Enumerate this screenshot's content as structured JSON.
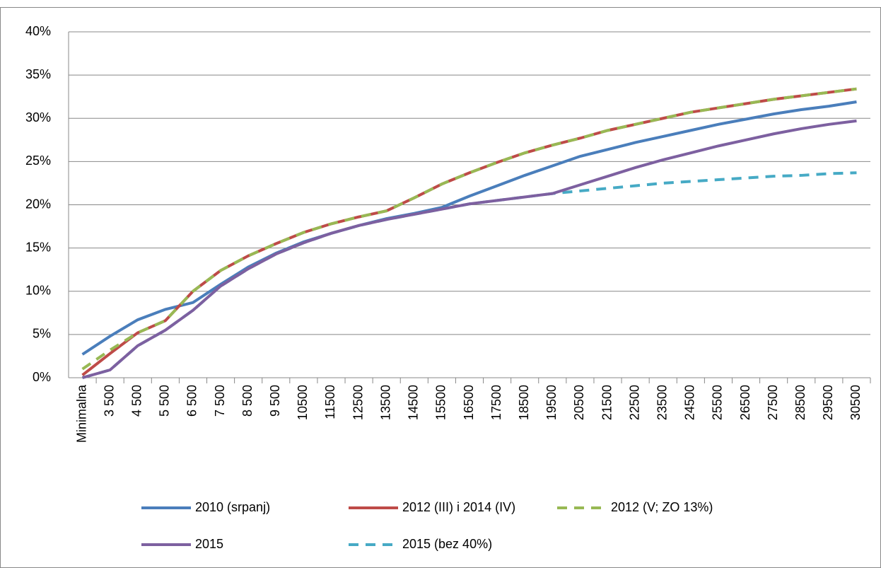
{
  "chart_data": {
    "type": "line",
    "categories": [
      "Minimalna",
      "3 500",
      "4 500",
      "5 500",
      "6 500",
      "7 500",
      "8 500",
      "9 500",
      "10500",
      "11500",
      "12500",
      "13500",
      "14500",
      "15500",
      "16500",
      "17500",
      "18500",
      "19500",
      "20500",
      "21500",
      "22500",
      "23500",
      "24500",
      "25500",
      "26500",
      "27500",
      "28500",
      "29500",
      "30500"
    ],
    "series": [
      {
        "name": "2010 (srpanj)",
        "color": "#4a7ebb",
        "dashed": false,
        "values": [
          2.7,
          4.8,
          6.7,
          7.9,
          8.7,
          10.8,
          12.8,
          14.4,
          15.7,
          16.7,
          17.6,
          18.4,
          19.0,
          19.7,
          21.0,
          22.2,
          23.4,
          24.5,
          25.6,
          26.4,
          27.2,
          27.9,
          28.6,
          29.3,
          29.9,
          30.5,
          31.0,
          31.4,
          31.9
        ]
      },
      {
        "name": "2012 (III) i 2014 (IV)",
        "color": "#be4b48",
        "dashed": false,
        "values": [
          0.3,
          2.8,
          5.2,
          6.6,
          10.0,
          12.4,
          14.1,
          15.5,
          16.8,
          17.8,
          18.6,
          19.3,
          20.8,
          22.4,
          23.7,
          24.9,
          26.0,
          26.9,
          27.7,
          28.6,
          29.3,
          30.0,
          30.7,
          31.2,
          31.7,
          32.2,
          32.6,
          33.0,
          33.4
        ]
      },
      {
        "name": "2012 (V; ZO 13%)",
        "color": "#98b954",
        "dashed": true,
        "values": [
          1.0,
          3.2,
          5.2,
          6.6,
          10.0,
          12.4,
          14.1,
          15.5,
          16.8,
          17.8,
          18.6,
          19.3,
          20.8,
          22.4,
          23.7,
          24.9,
          26.0,
          26.9,
          27.7,
          28.6,
          29.3,
          30.0,
          30.7,
          31.2,
          31.7,
          32.2,
          32.6,
          33.0,
          33.4
        ]
      },
      {
        "name": "2015",
        "color": "#7d60a0",
        "dashed": false,
        "values": [
          0,
          0.9,
          3.7,
          5.5,
          7.8,
          10.6,
          12.6,
          14.3,
          15.6,
          16.7,
          17.6,
          18.3,
          18.9,
          19.5,
          20.1,
          20.5,
          20.9,
          21.3,
          22.3,
          23.3,
          24.3,
          25.2,
          26.0,
          26.8,
          27.5,
          28.2,
          28.8,
          29.3,
          29.7
        ]
      },
      {
        "name": "2015 (bez 40%)",
        "color": "#46aac5",
        "dashed": true,
        "values": [
          0,
          0.9,
          3.7,
          5.5,
          7.8,
          10.6,
          12.6,
          14.3,
          15.6,
          16.7,
          17.6,
          18.3,
          18.9,
          19.5,
          20.1,
          20.5,
          20.9,
          21.3,
          21.6,
          21.9,
          22.2,
          22.5,
          22.7,
          22.9,
          23.1,
          23.3,
          23.4,
          23.6,
          23.7
        ]
      }
    ],
    "ylim": [
      0,
      40
    ],
    "yticks": [
      {
        "value": 0,
        "label": "0%"
      },
      {
        "value": 5,
        "label": "5%"
      },
      {
        "value": 10,
        "label": "10%"
      },
      {
        "value": 15,
        "label": "15%"
      },
      {
        "value": 20,
        "label": "20%"
      },
      {
        "value": 25,
        "label": "25%"
      },
      {
        "value": 30,
        "label": "30%"
      },
      {
        "value": 35,
        "label": "35%"
      },
      {
        "value": 40,
        "label": "40%"
      }
    ],
    "grid": true,
    "legend": "bottom"
  }
}
